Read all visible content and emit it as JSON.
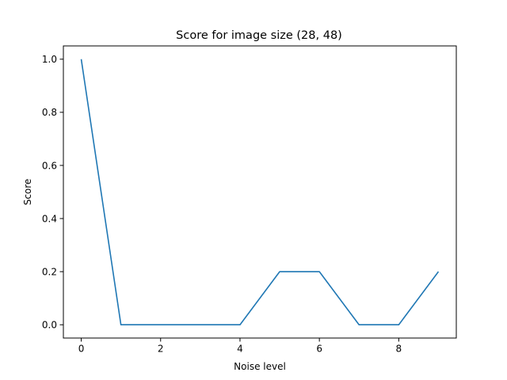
{
  "chart_data": {
    "type": "line",
    "title": "Score for image size (28, 48)",
    "xlabel": "Noise level",
    "ylabel": "Score",
    "xlim": [
      -0.45,
      9.45
    ],
    "ylim": [
      -0.05,
      1.05
    ],
    "xticks": [
      0,
      2,
      4,
      6,
      8
    ],
    "yticks": [
      0.0,
      0.2,
      0.4,
      0.6,
      0.8,
      1.0
    ],
    "xtick_labels": [
      "0",
      "2",
      "4",
      "6",
      "8"
    ],
    "ytick_labels": [
      "0.0",
      "0.2",
      "0.4",
      "0.6",
      "0.8",
      "1.0"
    ],
    "grid": false,
    "series": [
      {
        "color": "#1f77b4",
        "x": [
          0,
          1,
          2,
          3,
          4,
          5,
          6,
          7,
          8,
          9
        ],
        "y": [
          1.0,
          0.0,
          0.0,
          0.0,
          0.0,
          0.2,
          0.2,
          0.0,
          0.0,
          0.2
        ]
      }
    ]
  }
}
